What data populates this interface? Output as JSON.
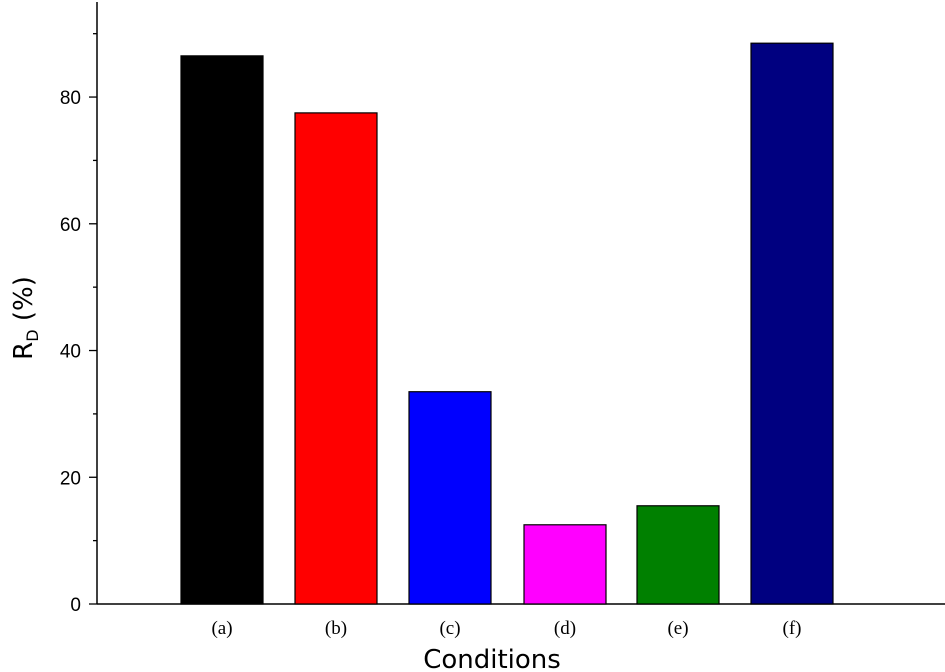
{
  "chart_data": {
    "type": "bar",
    "categories": [
      "(a)",
      "(b)",
      "(c)",
      "(d)",
      "(e)",
      "(f)"
    ],
    "values": [
      86.5,
      77.5,
      33.5,
      12.5,
      15.5,
      88.5
    ],
    "colors": [
      "#000000",
      "#ff0000",
      "#0000ff",
      "#ff00ff",
      "#008000",
      "#000080"
    ],
    "xlabel": "Conditions",
    "ylabel_main": "R",
    "ylabel_sub": "D",
    "ylabel_unit": " (%)",
    "ylim": [
      0,
      95
    ],
    "yticks": [
      0,
      20,
      40,
      60,
      80
    ],
    "ytick_labels": [
      "0",
      "20",
      "40",
      "60",
      "80"
    ],
    "minor_step": 10,
    "grid": false
  }
}
